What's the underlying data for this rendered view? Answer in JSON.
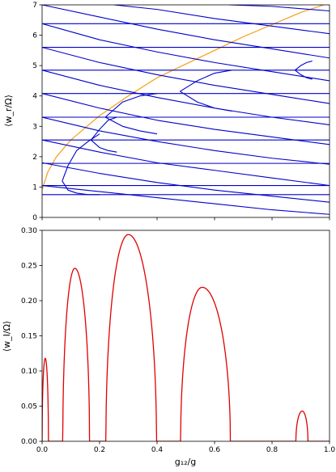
{
  "chart_data": [
    {
      "type": "line",
      "title": "",
      "xlabel": "",
      "ylabel": "⟨w_r/Ω⟩",
      "xlim": [
        0,
        1
      ],
      "ylim": [
        0,
        7
      ],
      "x_ticks": [],
      "y_ticks": [
        "0",
        "1",
        "2",
        "3",
        "4",
        "5",
        "6",
        "7"
      ],
      "grid": false,
      "legend": "none",
      "colors": {
        "bands": "#0000cc",
        "sqrt_curve": "#f5a623"
      },
      "series": [
        {
          "role": "sqrt_curve",
          "color": "#f5a623",
          "x": [
            0.0,
            0.02,
            0.05,
            0.1,
            0.2,
            0.3,
            0.4,
            0.5,
            0.6,
            0.7,
            0.8,
            0.9,
            0.98
          ],
          "y": [
            0.92,
            1.5,
            2.0,
            2.55,
            3.35,
            4.0,
            4.6,
            5.05,
            5.5,
            5.95,
            6.35,
            6.75,
            7.0
          ]
        },
        {
          "role": "band",
          "x": [
            0,
            1
          ],
          "y": [
            0.75,
            0.75
          ]
        },
        {
          "role": "band",
          "x": [
            0,
            1
          ],
          "y": [
            1.05,
            1.05
          ]
        },
        {
          "role": "band",
          "x": [
            0,
            1
          ],
          "y": [
            1.78,
            1.78
          ]
        },
        {
          "role": "band",
          "x": [
            0,
            1
          ],
          "y": [
            2.55,
            2.55
          ]
        },
        {
          "role": "band",
          "x": [
            0,
            1
          ],
          "y": [
            3.3,
            3.3
          ]
        },
        {
          "role": "band",
          "x": [
            0,
            1
          ],
          "y": [
            4.08,
            4.08
          ]
        },
        {
          "role": "band",
          "x": [
            0,
            1
          ],
          "y": [
            4.85,
            4.85
          ]
        },
        {
          "role": "band",
          "x": [
            0,
            1
          ],
          "y": [
            5.6,
            5.6
          ]
        },
        {
          "role": "band",
          "x": [
            0,
            1
          ],
          "y": [
            6.38,
            6.38
          ]
        },
        {
          "role": "band",
          "x": [
            0.0,
            0.2,
            0.4,
            0.6,
            0.8,
            1.0
          ],
          "y": [
            1.05,
            0.85,
            0.65,
            0.45,
            0.25,
            0.1
          ]
        },
        {
          "role": "band",
          "x": [
            0.0,
            0.2,
            0.4,
            0.6,
            0.8,
            1.0
          ],
          "y": [
            1.8,
            1.45,
            1.15,
            0.9,
            0.7,
            0.5
          ]
        },
        {
          "role": "band",
          "x": [
            0.0,
            0.2,
            0.4,
            0.6,
            0.8,
            1.0
          ],
          "y": [
            2.55,
            2.15,
            1.8,
            1.55,
            1.3,
            1.05
          ]
        },
        {
          "role": "band",
          "x": [
            0.0,
            0.2,
            0.4,
            0.6,
            0.8,
            1.0
          ],
          "y": [
            3.3,
            2.85,
            2.5,
            2.2,
            1.95,
            1.75
          ]
        },
        {
          "role": "band",
          "x": [
            0.0,
            0.2,
            0.4,
            0.6,
            0.8,
            1.0
          ],
          "y": [
            4.08,
            3.6,
            3.2,
            2.9,
            2.65,
            2.4
          ]
        },
        {
          "role": "band",
          "x": [
            0.0,
            0.2,
            0.4,
            0.6,
            0.8,
            1.0
          ],
          "y": [
            4.85,
            4.35,
            3.95,
            3.6,
            3.3,
            3.05
          ]
        },
        {
          "role": "band",
          "x": [
            0.0,
            0.2,
            0.4,
            0.6,
            0.8,
            1.0
          ],
          "y": [
            5.6,
            5.1,
            4.7,
            4.35,
            4.05,
            3.75
          ]
        },
        {
          "role": "band",
          "x": [
            0.0,
            0.2,
            0.4,
            0.6,
            0.8,
            1.0
          ],
          "y": [
            6.38,
            5.85,
            5.45,
            5.1,
            4.8,
            4.5
          ]
        },
        {
          "role": "band",
          "x": [
            0.0,
            0.2,
            0.4,
            0.6,
            0.8,
            1.0
          ],
          "y": [
            7.0,
            6.6,
            6.2,
            5.85,
            5.55,
            5.25
          ]
        },
        {
          "role": "band",
          "x": [
            0.25,
            0.4,
            0.6,
            0.8,
            1.0
          ],
          "y": [
            7.0,
            6.85,
            6.55,
            6.3,
            6.05
          ]
        },
        {
          "role": "band",
          "x": [
            0.65,
            0.8,
            1.0
          ],
          "y": [
            7.0,
            6.95,
            6.8
          ]
        },
        {
          "role": "band",
          "x": [
            0.07,
            0.09,
            0.12,
            0.16,
            0.2
          ],
          "y": [
            1.2,
            1.7,
            2.2,
            2.5,
            2.75
          ]
        },
        {
          "role": "band",
          "x": [
            0.07,
            0.09,
            0.12,
            0.16,
            0.2
          ],
          "y": [
            1.2,
            0.9,
            0.8,
            0.75,
            0.75
          ]
        },
        {
          "role": "band",
          "x": [
            0.17,
            0.2,
            0.23,
            0.26
          ],
          "y": [
            2.55,
            2.9,
            3.2,
            3.3
          ]
        },
        {
          "role": "band",
          "x": [
            0.17,
            0.2,
            0.23,
            0.26
          ],
          "y": [
            2.55,
            2.3,
            2.2,
            2.15
          ]
        },
        {
          "role": "band",
          "x": [
            0.22,
            0.28,
            0.34,
            0.4
          ],
          "y": [
            3.3,
            3.8,
            4.0,
            4.08
          ]
        },
        {
          "role": "band",
          "x": [
            0.22,
            0.28,
            0.34,
            0.4
          ],
          "y": [
            3.3,
            3.0,
            2.85,
            2.75
          ]
        },
        {
          "role": "band",
          "x": [
            0.48,
            0.54,
            0.6,
            0.66
          ],
          "y": [
            4.15,
            4.5,
            4.75,
            4.85
          ]
        },
        {
          "role": "band",
          "x": [
            0.48,
            0.54,
            0.6,
            0.66
          ],
          "y": [
            4.15,
            3.8,
            3.6,
            3.5
          ]
        },
        {
          "role": "band",
          "x": [
            0.88,
            0.9,
            0.92,
            0.94
          ],
          "y": [
            4.85,
            5.0,
            5.1,
            5.15
          ]
        },
        {
          "role": "band",
          "x": [
            0.88,
            0.9,
            0.92,
            0.94
          ],
          "y": [
            4.85,
            4.7,
            4.6,
            4.55
          ]
        }
      ]
    },
    {
      "type": "line",
      "title": "",
      "xlabel": "g₁₂/g",
      "ylabel": "⟨w_I/Ω⟩",
      "xlim": [
        0,
        1
      ],
      "ylim": [
        0,
        0.3
      ],
      "x_ticks": [
        "0.0",
        "0.2",
        "0.4",
        "0.6",
        "0.8",
        "1.0"
      ],
      "y_ticks": [
        "0.00",
        "0.05",
        "0.10",
        "0.15",
        "0.20",
        "0.25",
        "0.30"
      ],
      "grid": false,
      "legend": "none",
      "colors": {
        "line": "#e00000"
      },
      "lobes": [
        {
          "x_start": 0.0,
          "x_end": 0.022,
          "peak_x": 0.011,
          "peak": 0.118
        },
        {
          "x_start": 0.072,
          "x_end": 0.165,
          "peak_x": 0.114,
          "peak": 0.246
        },
        {
          "x_start": 0.222,
          "x_end": 0.398,
          "peak_x": 0.3,
          "peak": 0.294
        },
        {
          "x_start": 0.482,
          "x_end": 0.655,
          "peak_x": 0.557,
          "peak": 0.219
        },
        {
          "x_start": 0.883,
          "x_end": 0.925,
          "peak_x": 0.905,
          "peak": 0.043
        }
      ]
    }
  ]
}
